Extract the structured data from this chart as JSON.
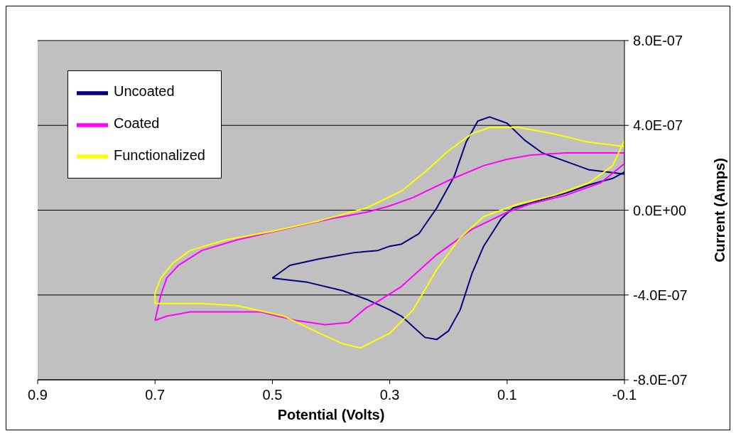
{
  "chart_data": {
    "type": "line",
    "xlabel": "Potential (Volts)",
    "ylabel": "Current (Amps)",
    "xlim": [
      0.9,
      -0.1
    ],
    "xticks": [
      0.9,
      0.7,
      0.5,
      0.3,
      0.1,
      -0.1
    ],
    "ylim": [
      -8e-07,
      8e-07
    ],
    "yticks": [
      {
        "value": -8e-07,
        "label": "-8.0E-07"
      },
      {
        "value": -4e-07,
        "label": "-4.0E-07"
      },
      {
        "value": 0,
        "label": "0.0E+00"
      },
      {
        "value": 4e-07,
        "label": "4.0E-07"
      },
      {
        "value": 8e-07,
        "label": "8.0E-07"
      }
    ],
    "grid": "y",
    "legend": "top left",
    "marker": "none",
    "line_style": "solid",
    "series": [
      {
        "name": "Uncoated",
        "color": "#000080",
        "x": [
          0.5,
          0.44,
          0.38,
          0.34,
          0.3,
          0.28,
          0.24,
          0.22,
          0.2,
          0.18,
          0.16,
          0.14,
          0.11,
          0.09,
          0.04,
          0,
          -0.04,
          -0.08,
          -0.1
        ],
        "values": [
          -3.2e-07,
          -3.4e-07,
          -3.8e-07,
          -4.2e-07,
          -4.7e-07,
          -5e-07,
          -6e-07,
          -6.1e-07,
          -5.7e-07,
          -4.7e-07,
          -3e-07,
          -1.7e-07,
          -4e-08,
          1e-08,
          5e-08,
          8e-08,
          1.2e-07,
          1.5e-07,
          1.8e-07
        ]
      },
      {
        "color": "#000080",
        "x": [
          -0.1,
          -0.1,
          -0.07,
          -0.04,
          0,
          0.04,
          0.07,
          0.1,
          0.13,
          0.15,
          0.17,
          0.19,
          0.22,
          0.25,
          0.28,
          0.3,
          0.32,
          0.36,
          0.42,
          0.47,
          0.49,
          0.5
        ],
        "values": [
          1.8e-07,
          1.7e-07,
          1.8e-07,
          1.9e-07,
          2.3e-07,
          2.7e-07,
          3.3e-07,
          4.1e-07,
          4.4e-07,
          4.2e-07,
          3.2e-07,
          1.6e-07,
          1e-08,
          -1.1e-07,
          -1.6e-07,
          -1.7e-07,
          -1.9e-07,
          -2e-07,
          -2.3e-07,
          -2.6e-07,
          -3e-07,
          -3.2e-07
        ]
      },
      {
        "name": "Coated",
        "color": "#ff00ff",
        "x": [
          0.7,
          0.69,
          0.68,
          0.66,
          0.62,
          0.56,
          0.48,
          0.4,
          0.34,
          0.3,
          0.26,
          0.2,
          0.14,
          0.1,
          0.06,
          0,
          -0.1
        ],
        "values": [
          -5.2e-07,
          -4e-07,
          -3.2e-07,
          -2.6e-07,
          -1.9e-07,
          -1.4e-07,
          -9e-08,
          -4e-08,
          -1e-08,
          2e-08,
          6e-08,
          1.4e-07,
          2.1e-07,
          2.4e-07,
          2.6e-07,
          2.7e-07,
          2.7e-07
        ]
      },
      {
        "color": "#ff00ff",
        "x": [
          -0.1,
          -0.1,
          -0.06,
          0,
          0.06,
          0.1,
          0.16,
          0.22,
          0.28,
          0.32,
          0.34,
          0.37,
          0.41,
          0.46,
          0.52,
          0.6,
          0.64,
          0.68,
          0.7
        ],
        "values": [
          2.7e-07,
          2.2e-07,
          1.3e-07,
          7e-08,
          3e-08,
          -1e-08,
          -9e-08,
          -2.1e-07,
          -3.6e-07,
          -4.3e-07,
          -4.6e-07,
          -5.3e-07,
          -5.4e-07,
          -5.2e-07,
          -4.8e-07,
          -4.8e-07,
          -4.8e-07,
          -5e-07,
          -5.2e-07
        ]
      },
      {
        "name": "Functionalized",
        "color": "#ffff00",
        "x": [
          0.7,
          0.7,
          0.69,
          0.67,
          0.64,
          0.58,
          0.5,
          0.42,
          0.34,
          0.28,
          0.24,
          0.2,
          0.16,
          0.13,
          0.08,
          0.02,
          -0.04,
          -0.1
        ],
        "values": [
          -4.4e-07,
          -3.9e-07,
          -3.2e-07,
          -2.5e-07,
          -1.9e-07,
          -1.4e-07,
          -1e-07,
          -5e-08,
          1e-08,
          9e-08,
          1.8e-07,
          2.8e-07,
          3.6e-07,
          3.9e-07,
          3.9e-07,
          3.6e-07,
          3.2e-07,
          3e-07
        ]
      },
      {
        "color": "#ffff00",
        "x": [
          -0.1,
          -0.1,
          -0.08,
          -0.04,
          0.02,
          0.08,
          0.14,
          0.18,
          0.22,
          0.26,
          0.3,
          0.35,
          0.38,
          0.42,
          0.48,
          0.56,
          0.62,
          0.7
        ],
        "values": [
          3e-07,
          3.3e-07,
          2.1e-07,
          1.3e-07,
          7e-08,
          3e-08,
          -3e-08,
          -1.3e-07,
          -2.8e-07,
          -4.7e-07,
          -5.8e-07,
          -6.5e-07,
          -6.3e-07,
          -5.8e-07,
          -5e-07,
          -4.5e-07,
          -4.4e-07,
          -4.4e-07
        ]
      }
    ]
  }
}
